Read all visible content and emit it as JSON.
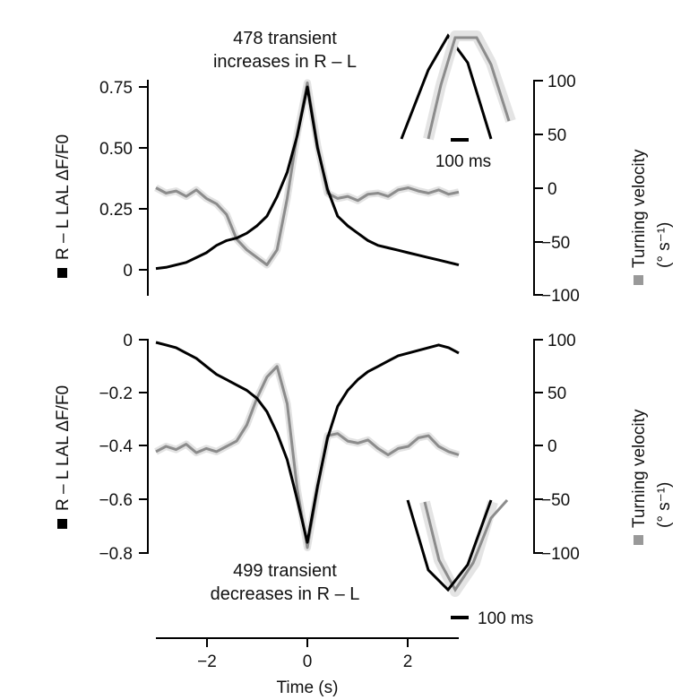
{
  "chart_data": [
    {
      "type": "line",
      "panel": "top",
      "title": [
        "478 transient",
        "increases in R – L"
      ],
      "ylabel_left": "R – L LAL ΔF/F0",
      "ylabel_right": [
        "Turning velocity",
        "(° s⁻¹)"
      ],
      "xlim": [
        -3,
        3
      ],
      "ylim_left": [
        -0.1,
        0.75
      ],
      "ylim_right": [
        -100,
        100
      ],
      "yticks_left": [
        "0.75",
        "0.50",
        "0.25",
        "0"
      ],
      "yticks_right": [
        "100",
        "50",
        "0",
        "−50",
        "−100"
      ],
      "inset_scalebar": "100 ms",
      "series": [
        {
          "axis": "left",
          "color": "#000000",
          "x": [
            -3,
            -2.8,
            -2.6,
            -2.4,
            -2.2,
            -2.0,
            -1.8,
            -1.6,
            -1.4,
            -1.2,
            -1.0,
            -0.8,
            -0.6,
            -0.4,
            -0.2,
            0,
            0.2,
            0.4,
            0.6,
            0.8,
            1.0,
            1.2,
            1.4,
            1.6,
            1.8,
            2.0,
            2.2,
            2.4,
            2.6,
            2.8,
            3.0
          ],
          "y": [
            0.005,
            0.01,
            0.02,
            0.03,
            0.05,
            0.07,
            0.1,
            0.12,
            0.13,
            0.15,
            0.18,
            0.22,
            0.3,
            0.4,
            0.55,
            0.75,
            0.5,
            0.33,
            0.22,
            0.18,
            0.15,
            0.12,
            0.1,
            0.09,
            0.08,
            0.07,
            0.06,
            0.05,
            0.04,
            0.03,
            0.02
          ]
        },
        {
          "axis": "right",
          "color": "#8c8c8c",
          "x": [
            -3,
            -2.8,
            -2.6,
            -2.4,
            -2.2,
            -2.0,
            -1.8,
            -1.6,
            -1.4,
            -1.2,
            -1.0,
            -0.8,
            -0.6,
            -0.4,
            -0.2,
            0,
            0.2,
            0.4,
            0.6,
            0.8,
            1.0,
            1.2,
            1.4,
            1.6,
            1.8,
            2.0,
            2.2,
            2.4,
            2.6,
            2.8,
            3.0
          ],
          "y": [
            0,
            -5,
            -3,
            -8,
            -2,
            -10,
            -15,
            -25,
            -48,
            -58,
            -65,
            -72,
            -58,
            -10,
            50,
            98,
            40,
            -5,
            -10,
            -8,
            -12,
            -6,
            -5,
            -8,
            -2,
            0,
            -3,
            -5,
            -2,
            -6,
            -4
          ]
        }
      ]
    },
    {
      "type": "line",
      "panel": "bottom",
      "title": [
        "499 transient",
        "decreases in R – L"
      ],
      "ylabel_left": "R – L LAL ΔF/F0",
      "ylabel_right": [
        "Turning velocity",
        "(° s⁻¹)"
      ],
      "xlabel": "Time (s)",
      "xlim": [
        -3,
        3
      ],
      "xticks": [
        "−2",
        "0",
        "2"
      ],
      "ylim_left": [
        -0.8,
        0
      ],
      "ylim_right": [
        -100,
        100
      ],
      "yticks_left": [
        "0",
        "−0.2",
        "−0.4",
        "−0.6",
        "−0.8"
      ],
      "yticks_right": [
        "100",
        "50",
        "0",
        "−50",
        "−100"
      ],
      "inset_scalebar": "100 ms",
      "series": [
        {
          "axis": "left",
          "color": "#000000",
          "x": [
            -3,
            -2.8,
            -2.6,
            -2.4,
            -2.2,
            -2.0,
            -1.8,
            -1.6,
            -1.4,
            -1.2,
            -1.0,
            -0.8,
            -0.6,
            -0.4,
            -0.2,
            0,
            0.2,
            0.4,
            0.6,
            0.8,
            1.0,
            1.2,
            1.4,
            1.6,
            1.8,
            2.0,
            2.2,
            2.4,
            2.6,
            2.8,
            3.0
          ],
          "y": [
            -0.01,
            -0.02,
            -0.03,
            -0.05,
            -0.07,
            -0.1,
            -0.13,
            -0.15,
            -0.17,
            -0.19,
            -0.22,
            -0.27,
            -0.35,
            -0.45,
            -0.6,
            -0.76,
            -0.55,
            -0.37,
            -0.25,
            -0.19,
            -0.15,
            -0.12,
            -0.1,
            -0.08,
            -0.06,
            -0.05,
            -0.04,
            -0.03,
            -0.02,
            -0.03,
            -0.05
          ]
        },
        {
          "axis": "right",
          "color": "#8c8c8c",
          "x": [
            -3,
            -2.8,
            -2.6,
            -2.4,
            -2.2,
            -2.0,
            -1.8,
            -1.6,
            -1.4,
            -1.2,
            -1.0,
            -0.8,
            -0.6,
            -0.4,
            -0.2,
            0,
            0.2,
            0.4,
            0.6,
            0.8,
            1.0,
            1.2,
            1.4,
            1.6,
            1.8,
            2.0,
            2.2,
            2.4,
            2.6,
            2.8,
            3.0
          ],
          "y": [
            -5,
            0,
            -3,
            2,
            -6,
            -2,
            -5,
            0,
            5,
            20,
            45,
            65,
            75,
            40,
            -40,
            -95,
            -40,
            10,
            12,
            5,
            3,
            6,
            -2,
            -8,
            -2,
            0,
            8,
            10,
            0,
            -5,
            -8
          ]
        }
      ]
    }
  ]
}
